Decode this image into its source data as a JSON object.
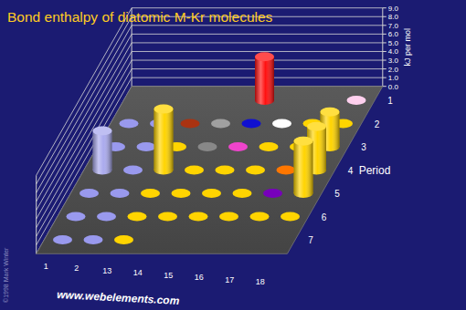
{
  "chart_data": {
    "type": "bar3d",
    "title": "Bond enthalpy of diatomic M-Kr molecules",
    "categories": [
      "1",
      "2",
      "13",
      "14",
      "15",
      "16",
      "17",
      "18"
    ],
    "periods": [
      "1",
      "2",
      "3",
      "4",
      "5",
      "6",
      "7"
    ],
    "y_label": "Period",
    "z_label": "kJ per mol",
    "zlim": [
      0,
      9
    ],
    "zticks": [
      {
        "value": 0,
        "label": "0.0"
      },
      {
        "value": 1,
        "label": "1.0"
      },
      {
        "value": 2,
        "label": "2.0"
      },
      {
        "value": 3,
        "label": "3.0"
      },
      {
        "value": 4,
        "label": "4.0"
      },
      {
        "value": 5,
        "label": "5.0"
      },
      {
        "value": 6,
        "label": "6.0"
      },
      {
        "value": 7,
        "label": "7.0"
      },
      {
        "value": 8,
        "label": "8.0"
      },
      {
        "value": 9,
        "label": "9.0"
      }
    ],
    "grid": true,
    "values": [
      [
        null,
        null,
        null,
        null,
        5,
        null,
        null,
        null
      ],
      [
        null,
        null,
        null,
        null,
        null,
        null,
        null,
        null
      ],
      [
        null,
        null,
        null,
        null,
        null,
        null,
        null,
        4
      ],
      [
        4.5,
        null,
        7,
        null,
        null,
        null,
        null,
        5
      ],
      [
        null,
        null,
        null,
        null,
        null,
        null,
        null,
        6
      ],
      [
        null,
        null,
        null,
        null,
        null,
        null,
        null,
        null
      ],
      [
        null,
        null,
        null,
        null,
        null,
        null,
        null,
        null
      ]
    ],
    "colors": [
      [
        null,
        null,
        null,
        null,
        "#ff1010",
        null,
        null,
        "#ffd0ee"
      ],
      [
        "#9999ee",
        "#9999ee",
        "#aa3311",
        "#a0a0a0",
        "#1010d0",
        "#ffffff",
        "#ffd400",
        "#ffd400"
      ],
      [
        "#9999ee",
        "#9999ee",
        "#ffd400",
        "#888888",
        "#ee44cc",
        "#ffd400",
        "#ffd400",
        "#ffd400"
      ],
      [
        "#aaaaee",
        "#9999ee",
        "#ffd400",
        "#ffd400",
        "#ffd400",
        "#ffd400",
        "#ff7700",
        "#ffd400"
      ],
      [
        "#9999ee",
        "#9999ee",
        "#ffd400",
        "#ffd400",
        "#ffd400",
        "#ffd400",
        "#7700bb",
        "#ffd400"
      ],
      [
        "#9999ee",
        "#9999ee",
        "#ffd400",
        "#ffd400",
        "#ffd400",
        "#ffd400",
        "#ffd400",
        "#ffd400"
      ],
      [
        "#9999ee",
        "#9999ee",
        "#ffd400",
        null,
        null,
        null,
        null,
        null
      ]
    ],
    "source": "www.webelements.com",
    "credit": "©1998 Mark Winter"
  }
}
